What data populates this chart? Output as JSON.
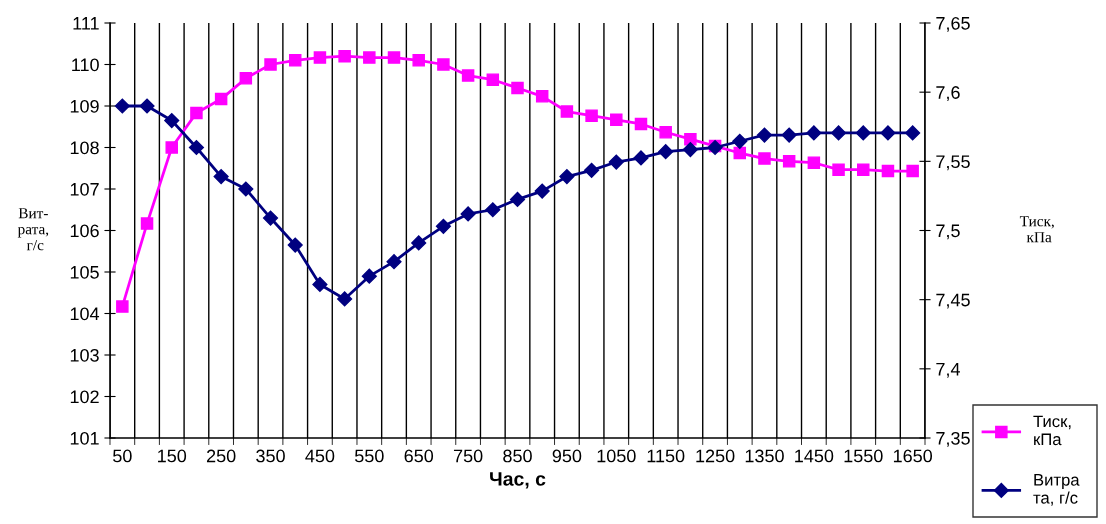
{
  "chart_data": {
    "type": "line",
    "xlabel": "Час, с",
    "ylabel": "Вит-\nрата,\n г/с",
    "y2label": "Тиск,\n кПа",
    "categories": [
      "50",
      null,
      "150",
      null,
      "250",
      null,
      "350",
      null,
      "450",
      null,
      "550",
      null,
      "650",
      null,
      "750",
      null,
      "850",
      null,
      "950",
      null,
      "1050",
      null,
      "1150",
      null,
      "1250",
      null,
      "1350",
      null,
      "1450",
      null,
      "1550",
      null,
      "1650"
    ],
    "series": [
      {
        "name": "Тиск,\nкПа",
        "color": "#ff00ff",
        "axis": "y2",
        "marker": "square",
        "values": [
          7.445,
          7.505,
          7.56,
          7.585,
          7.595,
          7.61,
          7.62,
          7.623,
          7.625,
          7.626,
          7.625,
          7.625,
          7.623,
          7.62,
          7.612,
          7.609,
          7.603,
          7.597,
          7.586,
          7.583,
          7.58,
          7.577,
          7.571,
          7.566,
          7.561,
          7.556,
          7.552,
          7.55,
          7.549,
          7.544,
          7.544,
          7.543,
          7.543
        ]
      },
      {
        "name": "Витра\nта, г/с",
        "color": "#000080",
        "marker": "diamond",
        "values": [
          109,
          109,
          108.65,
          108,
          107.3,
          107,
          106.3,
          105.65,
          104.7,
          104.35,
          104.9,
          105.25,
          105.7,
          106.1,
          106.4,
          106.5,
          106.75,
          106.95,
          107.3,
          107.45,
          107.65,
          107.75,
          107.9,
          107.95,
          108,
          108.15,
          108.3,
          108.3,
          108.35,
          108.35,
          108.35,
          108.35,
          108.35
        ]
      }
    ],
    "ylim": [
      101,
      111
    ],
    "yticks": [
      101,
      102,
      103,
      104,
      105,
      106,
      107,
      108,
      109,
      110,
      111
    ],
    "y2lim": [
      7.35,
      7.65
    ],
    "y2ticks": [
      {
        "value": 7.35,
        "label": "7,35"
      },
      {
        "value": 7.4,
        "label": "7,4"
      },
      {
        "value": 7.45,
        "label": "7,45"
      },
      {
        "value": 7.5,
        "label": "7,5"
      },
      {
        "value": 7.55,
        "label": "7,55"
      },
      {
        "value": 7.6,
        "label": "7,6"
      },
      {
        "value": 7.65,
        "label": "7,65"
      }
    ],
    "grid": "x",
    "legend": "bottom right",
    "line_style": "solid"
  }
}
